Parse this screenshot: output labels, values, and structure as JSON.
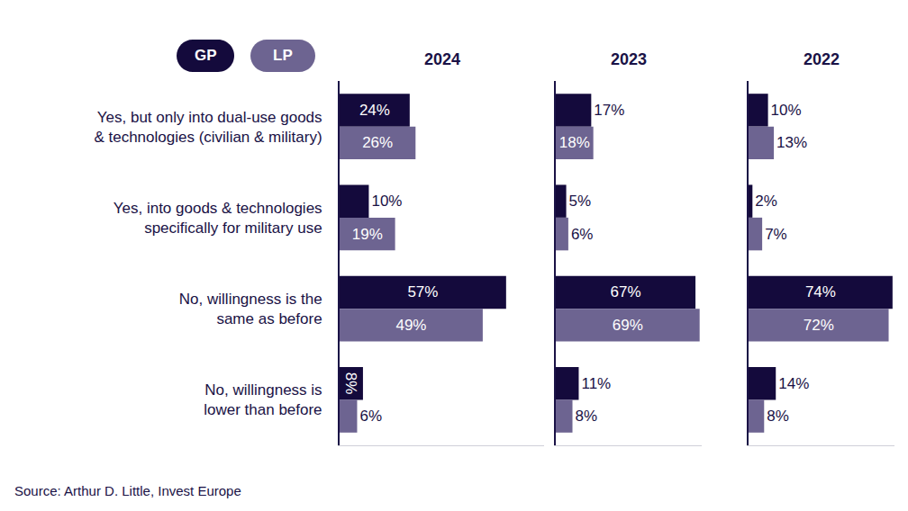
{
  "chart_data": [
    {
      "type": "bar",
      "title": "2024",
      "orientation": "horizontal",
      "data_labels": true,
      "legend": "top left",
      "tick_labels": "y",
      "categories": [
        "Yes, but only into dual-use goods\n& technologies (civilian & military)",
        "Yes, into goods & technologies\nspecifically for military use",
        "No, willingness is the\nsame as before",
        "No, willingness is\nlower than before"
      ],
      "xlim": [
        0,
        70
      ],
      "series": [
        {
          "name": "GP",
          "color": "#140a3c",
          "values": [
            24,
            10,
            57,
            8
          ],
          "value_labels": [
            "24%",
            "10%",
            "57%",
            "8%"
          ]
        },
        {
          "name": "LP",
          "color": "#6d6491",
          "values": [
            26,
            19,
            49,
            6
          ],
          "value_labels": [
            "26%",
            "19%",
            "49%",
            "6%"
          ]
        }
      ]
    },
    {
      "type": "bar",
      "title": "2023",
      "orientation": "horizontal",
      "data_labels": true,
      "tick_labels": false,
      "categories": [
        "Yes, but only into dual-use goods\n& technologies (civilian & military)",
        "Yes, into goods & technologies\nspecifically for military use",
        "No, willingness is the\nsame as before",
        "No, willingness is\nlower than before"
      ],
      "xlim": [
        0,
        70
      ],
      "series": [
        {
          "name": "GP",
          "color": "#140a3c",
          "values": [
            17,
            5,
            67,
            11
          ],
          "value_labels": [
            "17%",
            "5%",
            "67%",
            "11%"
          ]
        },
        {
          "name": "LP",
          "color": "#6d6491",
          "values": [
            18,
            6,
            69,
            8
          ],
          "value_labels": [
            "18%",
            "6%",
            "69%",
            "8%"
          ]
        }
      ]
    },
    {
      "type": "bar",
      "title": "2022",
      "orientation": "horizontal",
      "data_labels": true,
      "tick_labels": false,
      "categories": [
        "Yes, but only into dual-use goods\n& technologies (civilian & military)",
        "Yes, into goods & technologies\nspecifically for military use",
        "No, willingness is the\nsame as before",
        "No, willingness is\nlower than before"
      ],
      "xlim": [
        0,
        75
      ],
      "series": [
        {
          "name": "GP",
          "color": "#140a3c",
          "values": [
            10,
            2,
            74,
            14
          ],
          "value_labels": [
            "10%",
            "2%",
            "74%",
            "14%"
          ]
        },
        {
          "name": "LP",
          "color": "#6d6491",
          "values": [
            13,
            7,
            72,
            8
          ],
          "value_labels": [
            "13%",
            "7%",
            "72%",
            "8%"
          ]
        }
      ]
    }
  ],
  "source": "Source: Arthur D. Little, Invest Europe"
}
